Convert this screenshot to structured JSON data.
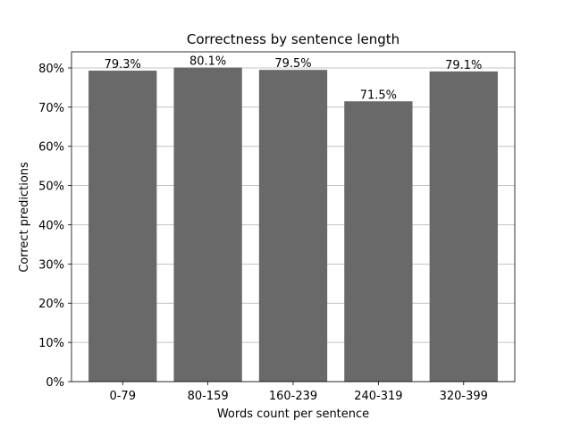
{
  "chart_data": {
    "type": "bar",
    "title": "Correctness by sentence length",
    "xlabel": "Words count per sentence",
    "ylabel": "Correct predictions",
    "categories": [
      "0-79",
      "80-159",
      "160-239",
      "240-319",
      "320-399"
    ],
    "values": [
      79.3,
      80.1,
      79.5,
      71.5,
      79.1
    ],
    "data_labels": [
      "79.3%",
      "80.1%",
      "79.5%",
      "71.5%",
      "79.1%"
    ],
    "ylim": [
      0,
      84.1
    ],
    "yticks": [
      0,
      10,
      20,
      30,
      40,
      50,
      60,
      70,
      80
    ],
    "ytick_labels": [
      "0%",
      "10%",
      "20%",
      "30%",
      "40%",
      "50%",
      "60%",
      "70%",
      "80%"
    ],
    "grid": "y",
    "colors": {
      "bar": "#696969",
      "grid": "#b0b0b0",
      "axes": "#000000"
    }
  }
}
